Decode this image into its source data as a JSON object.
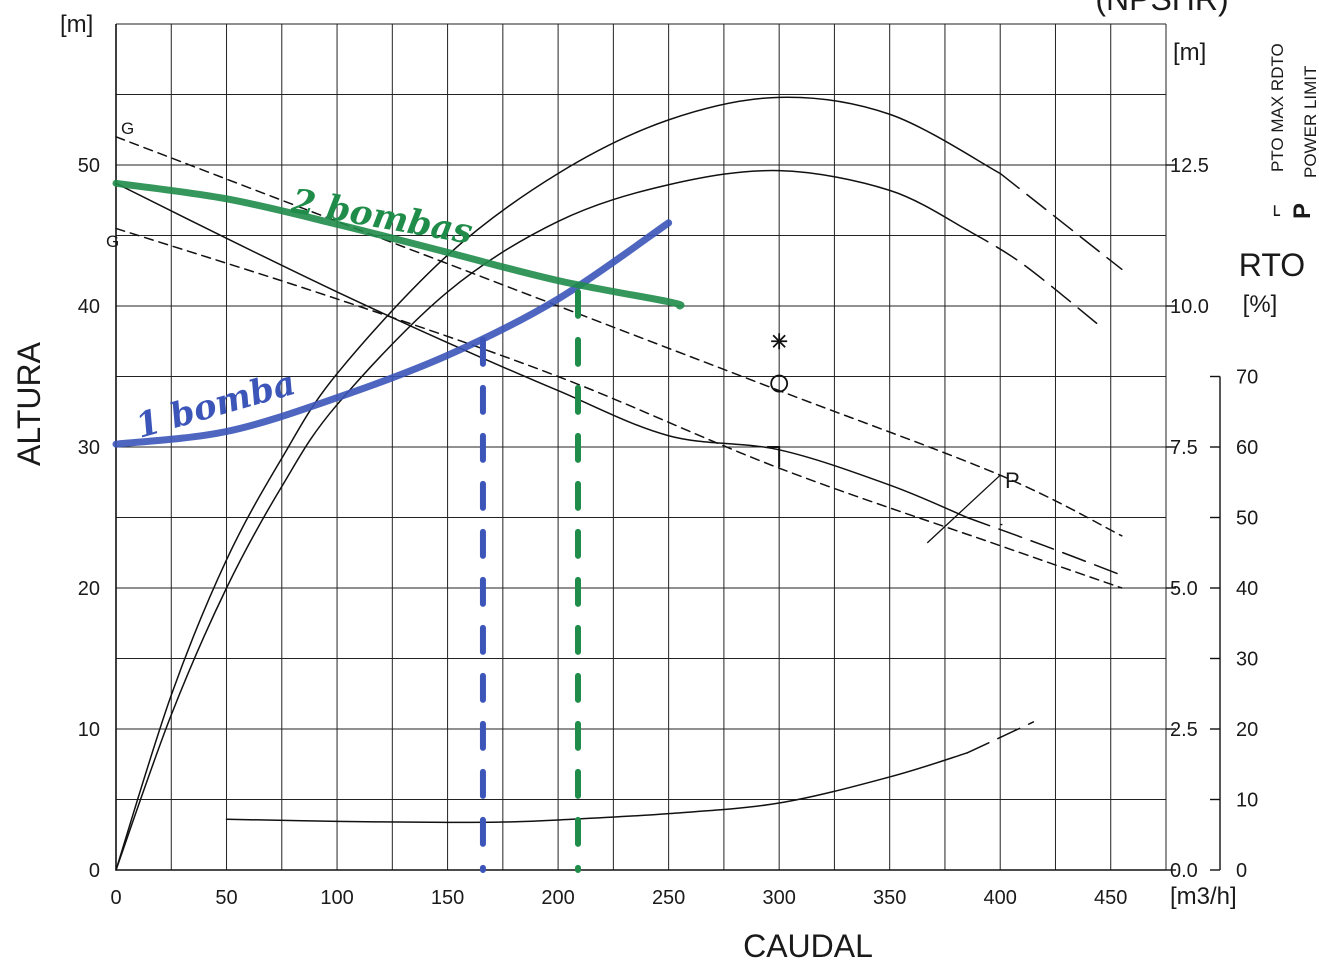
{
  "chart_data": {
    "type": "line",
    "xlabel": "CAUDAL",
    "x_unit": "[m3/h]",
    "ylabel": "ALTURA",
    "y_unit": "[m]",
    "npshr_title": "(NPSHR)",
    "npshr_unit": "[m]",
    "rto_label": "RTO",
    "rto_unit": "[%]",
    "legend_symbols": [
      "⌐",
      "P"
    ],
    "legend_labels": [
      "PTO MAX RDTO",
      "POWER  LIMIT"
    ],
    "annotations": {
      "g_upper": "G",
      "g_lower": "G",
      "power_limit": "P",
      "one_pump": "1 bomba",
      "two_pumps": "2 bombas"
    },
    "xlim": [
      0,
      475
    ],
    "ylim": [
      0,
      60
    ],
    "x_ticks": [
      0,
      50,
      100,
      150,
      200,
      250,
      300,
      350,
      400,
      450
    ],
    "y_ticks": [
      0,
      10,
      20,
      30,
      40,
      50
    ],
    "npsh_ticks": [
      "0.0",
      "2.5",
      "5.0",
      "7.5",
      "10.0",
      "12.5"
    ],
    "npsh_values": [
      0,
      2.5,
      5,
      7.5,
      10,
      12.5
    ],
    "rto_ticks": [
      0,
      10,
      20,
      30,
      40,
      50,
      60,
      70
    ],
    "grid": true,
    "series": [
      {
        "color": "#111111",
        "style": "solid",
        "x": [
          0,
          50,
          100,
          150,
          200,
          250,
          300,
          350,
          385
        ],
        "y": [
          48.7,
          44.8,
          41.0,
          37.4,
          34.0,
          30.8,
          29.8,
          27.3,
          25.0
        ]
      },
      {
        "color": "#111111",
        "style": "longdash",
        "x": [
          385,
          420,
          455
        ],
        "y": [
          25.0,
          23.0,
          20.9
        ]
      },
      {
        "color": "#111111",
        "style": "dash",
        "x": [
          0,
          100,
          200,
          300,
          400,
          455
        ],
        "y": [
          52.0,
          46.0,
          40.0,
          34.0,
          28.0,
          23.7
        ]
      },
      {
        "color": "#111111",
        "style": "dash",
        "x": [
          0,
          100,
          200,
          300,
          400,
          455
        ],
        "y": [
          45.5,
          40.5,
          35.0,
          28.5,
          23.0,
          20.0
        ]
      },
      {
        "color": "#111111",
        "style": "solid",
        "x": [
          0,
          25,
          50,
          75,
          100,
          150,
          200,
          250,
          300,
          350,
          400
        ],
        "y": [
          0,
          12.4,
          22.0,
          29.2,
          35.2,
          43.6,
          49.4,
          53.2,
          54.8,
          53.6,
          49.4
        ]
      },
      {
        "color": "#111111",
        "style": "longdash",
        "x": [
          400,
          455
        ],
        "y": [
          49.4,
          42.6
        ]
      },
      {
        "color": "#111111",
        "style": "solid",
        "x": [
          0,
          25,
          50,
          75,
          100,
          150,
          200,
          250,
          300,
          350,
          385
        ],
        "y": [
          0,
          11.0,
          20.0,
          27.2,
          33.0,
          41.0,
          46.0,
          48.6,
          49.6,
          48.2,
          45.4
        ]
      },
      {
        "color": "#111111",
        "style": "longdash",
        "x": [
          385,
          410,
          445
        ],
        "y": [
          45.4,
          43.0,
          38.6
        ]
      },
      {
        "color": "#111111",
        "style": "solid",
        "x": [
          50,
          100,
          150,
          175,
          200,
          250,
          300,
          350,
          385
        ],
        "y": [
          3.6,
          3.45,
          3.38,
          3.4,
          3.55,
          4.0,
          4.75,
          6.6,
          8.3
        ]
      },
      {
        "color": "#111111",
        "style": "longdash",
        "x": [
          385,
          415
        ],
        "y": [
          8.3,
          10.5
        ]
      },
      {
        "name": "1 bomba",
        "color": "#3b55b8",
        "style": "marker",
        "x": [
          0,
          50,
          100,
          150,
          200,
          250
        ],
        "y": [
          30.2,
          31.1,
          33.5,
          36.5,
          40.5,
          45.9
        ]
      },
      {
        "name": "2 bombas",
        "color": "#1f8c4a",
        "style": "marker",
        "x": [
          0,
          50,
          100,
          150,
          200,
          250,
          255
        ],
        "y": [
          48.7,
          47.6,
          45.8,
          43.8,
          41.8,
          40.3,
          40.0
        ]
      }
    ],
    "markers": [
      {
        "symbol": "asterisk",
        "x": 300,
        "y": 37.5
      },
      {
        "symbol": "circle",
        "x": 300,
        "y": 34.5
      },
      {
        "symbol": "corner",
        "x": 300,
        "y": 30.0
      }
    ],
    "verticals": [
      {
        "color": "#3b55b8",
        "x": 166,
        "y_top": 37.6
      },
      {
        "color": "#1f8c4a",
        "x": 209,
        "y_top": 41.0
      }
    ],
    "power_limit_segments": [
      {
        "x": [
          367,
          400
        ],
        "y": [
          23.2,
          28.0
        ]
      },
      {
        "x": [
          400,
          401
        ],
        "y": [
          24.5,
          24.5
        ]
      }
    ]
  }
}
